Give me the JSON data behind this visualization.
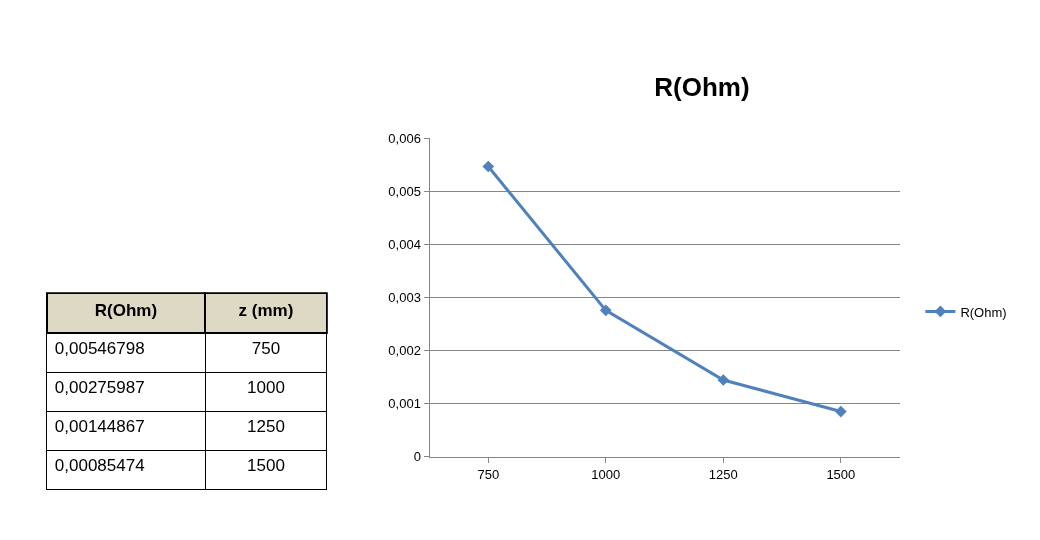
{
  "chart_data": {
    "type": "line",
    "title": "R(Ohm)",
    "annotations": [
      "z (mm)",
      "0,00546798",
      "0,00275987",
      "0,00144867",
      "0,00085474"
    ],
    "categories": [
      "750",
      "1000",
      "1250",
      "1500"
    ],
    "series": [
      {
        "name": "R(Ohm)",
        "color": "#4f81bd",
        "values": [
          0.00546798,
          0.00275987,
          0.00144867,
          0.00085474
        ]
      }
    ],
    "ylim": [
      0,
      0.006
    ],
    "yticks": [
      0,
      {
        "value": 0.001,
        "label": "0,001"
      },
      {
        "value": 0.002,
        "label": "0,002"
      },
      {
        "value": 0.003,
        "label": "0,003"
      },
      {
        "value": 0.004,
        "label": "0,004"
      },
      {
        "value": 0.005,
        "label": "0,005"
      },
      {
        "value": 0.006,
        "label": "0,006"
      }
    ],
    "grid": "y",
    "legend": "right",
    "marker": "diamond",
    "line_style": "solid"
  }
}
